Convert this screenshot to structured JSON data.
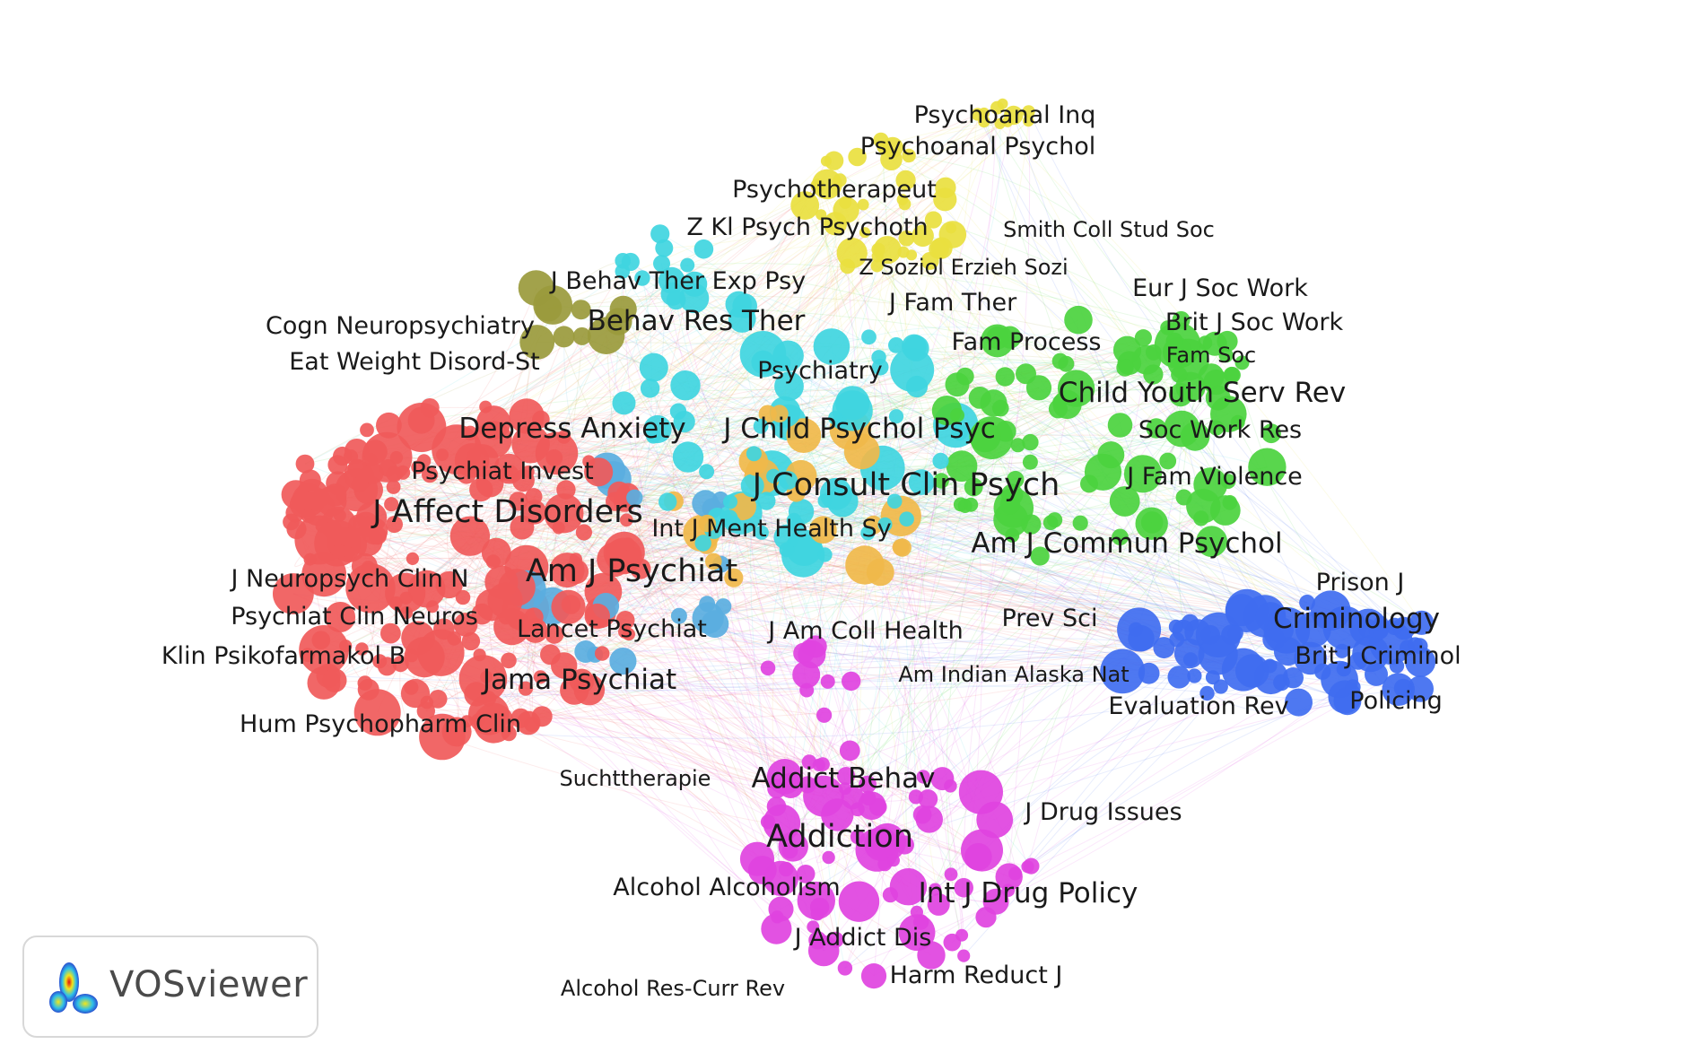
{
  "app": {
    "brand_name": "VOSviewer"
  },
  "clusters": [
    {
      "id": "red",
      "color": "#f05a5a"
    },
    {
      "id": "cyan",
      "color": "#3fd5e0"
    },
    {
      "id": "green",
      "color": "#4bd33e"
    },
    {
      "id": "blue",
      "color": "#3f6cf0"
    },
    {
      "id": "magenta",
      "color": "#e043e0"
    },
    {
      "id": "yellow",
      "color": "#e9e03f"
    },
    {
      "id": "olive",
      "color": "#9a9a3c"
    },
    {
      "id": "orange",
      "color": "#f0b84a"
    },
    {
      "id": "lightblue",
      "color": "#5aaee0"
    }
  ],
  "labels": [
    {
      "text": "Psychoanal Inq",
      "cluster": "yellow",
      "weight": 1
    },
    {
      "text": "Psychoanal Psychol",
      "cluster": "yellow",
      "weight": 1
    },
    {
      "text": "Psychotherapeut",
      "cluster": "yellow",
      "weight": 1
    },
    {
      "text": "Z Kl Psych Psychoth",
      "cluster": "yellow",
      "weight": 1
    },
    {
      "text": "Smith Coll Stud Soc",
      "cluster": "green",
      "weight": 0
    },
    {
      "text": "J Behav Ther Exp Psy",
      "cluster": "olive",
      "weight": 1
    },
    {
      "text": "Z Soziol Erzieh Sozi",
      "cluster": "cyan",
      "weight": 0
    },
    {
      "text": "Eur J Soc Work",
      "cluster": "green",
      "weight": 1
    },
    {
      "text": "J Fam Ther",
      "cluster": "cyan",
      "weight": 1
    },
    {
      "text": "Cogn Neuropsychiatry",
      "cluster": "red",
      "weight": 1
    },
    {
      "text": "Behav Res Ther",
      "cluster": "cyan",
      "weight": 2
    },
    {
      "text": "Brit J Soc Work",
      "cluster": "green",
      "weight": 1
    },
    {
      "text": "Eat Weight Disord-St",
      "cluster": "olive",
      "weight": 1
    },
    {
      "text": "Fam Process",
      "cluster": "green",
      "weight": 1
    },
    {
      "text": "Fam Soc",
      "cluster": "green",
      "weight": 0
    },
    {
      "text": "Psychiatry",
      "cluster": "cyan",
      "weight": 1
    },
    {
      "text": "Child Youth Serv Rev",
      "cluster": "green",
      "weight": 2
    },
    {
      "text": "Depress Anxiety",
      "cluster": "red",
      "weight": 2
    },
    {
      "text": "J Child Psychol Psyc",
      "cluster": "cyan",
      "weight": 2
    },
    {
      "text": "Soc Work Res",
      "cluster": "green",
      "weight": 1
    },
    {
      "text": "Psychiat Invest",
      "cluster": "red",
      "weight": 1
    },
    {
      "text": "J Fam Violence",
      "cluster": "green",
      "weight": 1
    },
    {
      "text": "J Consult Clin Psych",
      "cluster": "cyan",
      "weight": 3
    },
    {
      "text": "J Affect Disorders",
      "cluster": "red",
      "weight": 3
    },
    {
      "text": "Int J Ment Health Sy",
      "cluster": "yellow",
      "weight": 1
    },
    {
      "text": "Am J Commun Psychol",
      "cluster": "green",
      "weight": 2
    },
    {
      "text": "Am J Psychiat",
      "cluster": "red",
      "weight": 3
    },
    {
      "text": "J Neuropsych Clin N",
      "cluster": "red",
      "weight": 1
    },
    {
      "text": "Prison J",
      "cluster": "blue",
      "weight": 1
    },
    {
      "text": "Criminology",
      "cluster": "blue",
      "weight": 2
    },
    {
      "text": "Psychiat Clin Neuros",
      "cluster": "red",
      "weight": 1
    },
    {
      "text": "Lancet Psychiat",
      "cluster": "red",
      "weight": 1
    },
    {
      "text": "J Am Coll Health",
      "cluster": "magenta",
      "weight": 1
    },
    {
      "text": "Prev Sci",
      "cluster": "green",
      "weight": 1
    },
    {
      "text": "Klin Psikofarmakol B",
      "cluster": "red",
      "weight": 1
    },
    {
      "text": "Brit J Criminol",
      "cluster": "blue",
      "weight": 1
    },
    {
      "text": "Am Indian Alaska Nat",
      "cluster": "green",
      "weight": 0
    },
    {
      "text": "Jama Psychiat",
      "cluster": "red",
      "weight": 2
    },
    {
      "text": "Evaluation Rev",
      "cluster": "blue",
      "weight": 1
    },
    {
      "text": "Policing",
      "cluster": "blue",
      "weight": 1
    },
    {
      "text": "Hum Psychopharm Clin",
      "cluster": "red",
      "weight": 1
    },
    {
      "text": "Suchttherapie",
      "cluster": "magenta",
      "weight": 0
    },
    {
      "text": "Addict Behav",
      "cluster": "magenta",
      "weight": 2
    },
    {
      "text": "J Drug Issues",
      "cluster": "magenta",
      "weight": 1
    },
    {
      "text": "Addiction",
      "cluster": "magenta",
      "weight": 3
    },
    {
      "text": "Alcohol Alcoholism",
      "cluster": "magenta",
      "weight": 1
    },
    {
      "text": "Int J Drug Policy",
      "cluster": "magenta",
      "weight": 2
    },
    {
      "text": "J Addict Dis",
      "cluster": "magenta",
      "weight": 1
    },
    {
      "text": "Harm Reduct J",
      "cluster": "magenta",
      "weight": 1
    },
    {
      "text": "Alcohol Res-Curr Rev",
      "cluster": "magenta",
      "weight": 0
    }
  ]
}
